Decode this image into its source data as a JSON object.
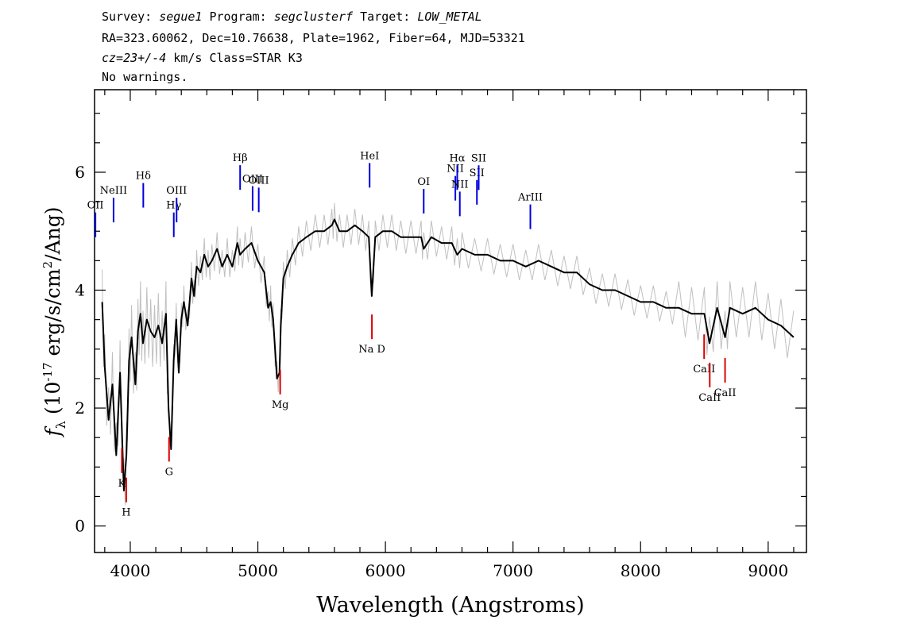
{
  "header": {
    "line1": {
      "survey_label": "Survey: ",
      "survey": "segue1",
      "program_label": " Program: ",
      "program": "segclusterf",
      "target_label": " Target: ",
      "target": "LOW_METAL"
    },
    "line2": "RA=323.60062, Dec=10.76638, Plate=1962, Fiber=64, MJD=53321",
    "line3": {
      "cz": "cz=23+/-4",
      "rest": " km/s Class=STAR K3"
    },
    "line4": "No warnings."
  },
  "colors": {
    "spectrum": "#000000",
    "error_band": "#c0c0c0",
    "emission_line": "#0000dd",
    "absorption_line": "#dd0000",
    "sky_line": "#000000"
  },
  "chart_data": {
    "type": "line",
    "xlabel": "Wavelength (Angstroms)",
    "ylabel": "fλ (10^-17 erg/s/cm^2/Ang)",
    "xlim": [
      3720,
      9300
    ],
    "ylim": [
      -0.45,
      7.4
    ],
    "x_ticks": [
      4000,
      5000,
      6000,
      7000,
      8000,
      9000
    ],
    "y_ticks": [
      0,
      2,
      4,
      6
    ],
    "grid": false,
    "series": [
      {
        "x": [
          3780,
          3800,
          3830,
          3860,
          3890,
          3920,
          3950,
          3970,
          3990,
          4010,
          4040,
          4060,
          4080,
          4100,
          4130,
          4160,
          4190,
          4220,
          4250,
          4280,
          4300,
          4320,
          4340,
          4360,
          4380,
          4400,
          4420,
          4450,
          4480,
          4500,
          4520,
          4550,
          4580,
          4610,
          4640,
          4680,
          4720,
          4760,
          4800,
          4840,
          4860,
          4900,
          4950,
          5000,
          5050,
          5080,
          5100,
          5120,
          5150,
          5170,
          5180,
          5200,
          5230,
          5270,
          5320,
          5380,
          5450,
          5520,
          5580,
          5600,
          5640,
          5700,
          5760,
          5820,
          5870,
          5893,
          5920,
          5980,
          6050,
          6120,
          6200,
          6280,
          6300,
          6360,
          6440,
          6520,
          6563,
          6600,
          6700,
          6800,
          6900,
          7000,
          7100,
          7200,
          7300,
          7400,
          7500,
          7600,
          7700,
          7800,
          7900,
          8000,
          8100,
          8200,
          8300,
          8400,
          8500,
          8540,
          8600,
          8662,
          8700,
          8800,
          8900,
          9000,
          9100,
          9200
        ],
        "y": [
          3.8,
          2.7,
          1.8,
          2.4,
          1.2,
          2.6,
          0.6,
          1.2,
          2.8,
          3.2,
          2.4,
          3.3,
          3.6,
          3.1,
          3.5,
          3.3,
          3.2,
          3.4,
          3.1,
          3.6,
          2.0,
          1.3,
          2.8,
          3.5,
          2.6,
          3.5,
          3.8,
          3.4,
          4.2,
          3.9,
          4.4,
          4.3,
          4.6,
          4.4,
          4.5,
          4.7,
          4.4,
          4.6,
          4.4,
          4.8,
          4.6,
          4.7,
          4.8,
          4.5,
          4.3,
          3.7,
          3.8,
          3.5,
          2.5,
          2.6,
          3.4,
          4.2,
          4.4,
          4.6,
          4.8,
          4.9,
          5.0,
          5.0,
          5.1,
          5.2,
          5.0,
          5.0,
          5.1,
          5.0,
          4.9,
          3.9,
          4.9,
          5.0,
          5.0,
          4.9,
          4.9,
          4.9,
          4.7,
          4.9,
          4.8,
          4.8,
          4.6,
          4.7,
          4.6,
          4.6,
          4.5,
          4.5,
          4.4,
          4.5,
          4.4,
          4.3,
          4.3,
          4.1,
          4.0,
          4.0,
          3.9,
          3.8,
          3.8,
          3.7,
          3.7,
          3.6,
          3.6,
          3.1,
          3.7,
          3.2,
          3.7,
          3.6,
          3.7,
          3.5,
          3.4,
          3.2
        ]
      }
    ],
    "emission_lines": [
      {
        "label": "OII",
        "wavelength": 3727
      },
      {
        "label": "NeIII",
        "wavelength": 3869
      },
      {
        "label": "Hδ",
        "wavelength": 4102
      },
      {
        "label": "Hγ",
        "wavelength": 4341
      },
      {
        "label": "OIII",
        "wavelength": 4363
      },
      {
        "label": "Hβ",
        "wavelength": 4861
      },
      {
        "label": "OIII",
        "wavelength": 4959
      },
      {
        "label": "OIII",
        "wavelength": 5007
      },
      {
        "label": "HeI",
        "wavelength": 5876
      },
      {
        "label": "OI",
        "wavelength": 6300
      },
      {
        "label": "NII",
        "wavelength": 6548
      },
      {
        "label": "Hα",
        "wavelength": 6563
      },
      {
        "label": "NII",
        "wavelength": 6583
      },
      {
        "label": "SII",
        "wavelength": 6717
      },
      {
        "label": "SII",
        "wavelength": 6731
      },
      {
        "label": "ArIII",
        "wavelength": 7136
      }
    ],
    "absorption_lines": [
      {
        "label": "K",
        "wavelength": 3934
      },
      {
        "label": "H",
        "wavelength": 3969
      },
      {
        "label": "G",
        "wavelength": 4304
      },
      {
        "label": "Mg",
        "wavelength": 5175
      },
      {
        "label": "Na D",
        "wavelength": 5894
      },
      {
        "label": "CaII",
        "wavelength": 8498
      },
      {
        "label": "CaII",
        "wavelength": 8542
      },
      {
        "label": "CaII",
        "wavelength": 8662
      }
    ]
  }
}
